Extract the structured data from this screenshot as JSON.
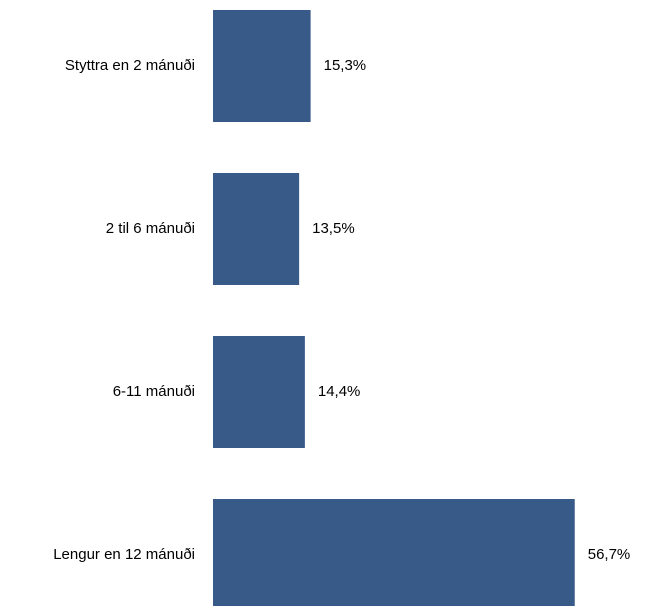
{
  "chart_data": {
    "type": "bar",
    "orientation": "horizontal",
    "categories": [
      "Styttra en 2 mánuði",
      "2 til 6 mánuði",
      "6-11 mánuði",
      "Lengur en 12 mánuði"
    ],
    "values": [
      15.3,
      13.5,
      14.4,
      56.7
    ],
    "value_labels": [
      "15,3%",
      "13,5%",
      "14,4%",
      "56,7%"
    ],
    "unit": "%",
    "title": "",
    "xlabel": "",
    "ylabel": "",
    "xlim": [
      0,
      60
    ],
    "grid": false,
    "legend": "none",
    "bar_color": "#375a88"
  }
}
